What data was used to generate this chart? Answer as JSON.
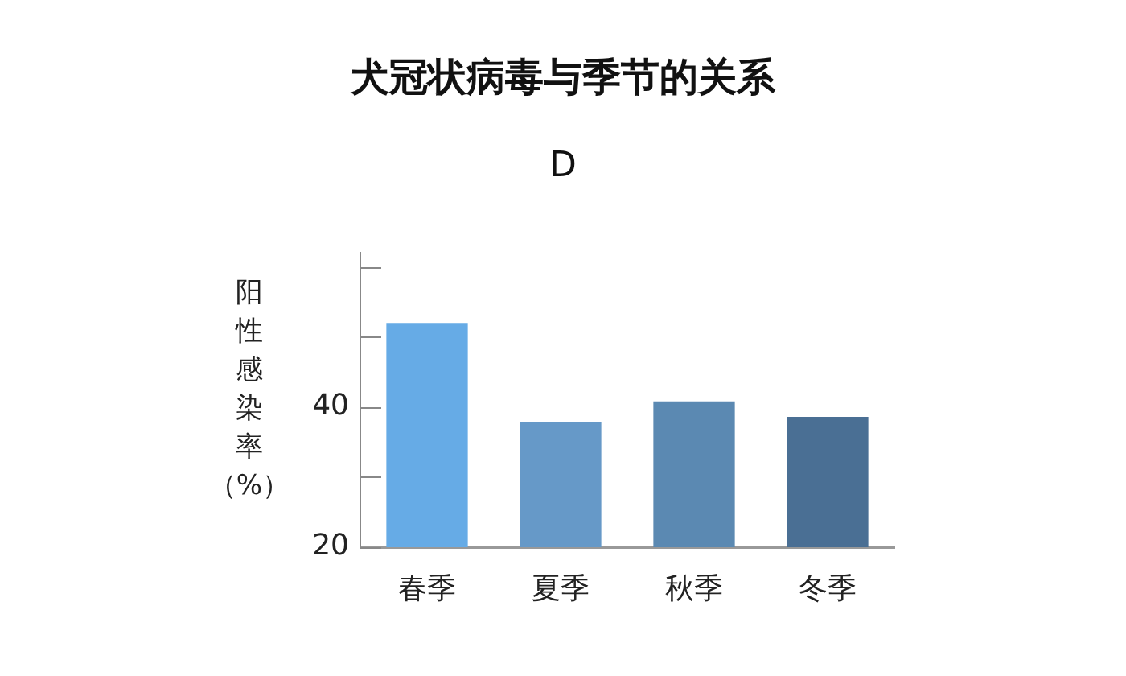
{
  "chart_data": {
    "type": "bar",
    "title": "犬冠状病毒与季节的关系",
    "subtitle": "D",
    "ylabel": "阳性感染率（%）",
    "categories": [
      "春季",
      "夏季",
      "秋季",
      "冬季"
    ],
    "values": [
      52.0,
      37.9,
      40.8,
      38.6
    ],
    "colors": [
      "#66abe6",
      "#6699c8",
      "#5b89b2",
      "#4a6f94"
    ],
    "ylim": [
      20,
      62
    ],
    "yticks": [
      20,
      {
        "value": 30,
        "label": null
      },
      40,
      {
        "value": 50,
        "label": null
      },
      {
        "value": 60,
        "label": null
      }
    ]
  }
}
